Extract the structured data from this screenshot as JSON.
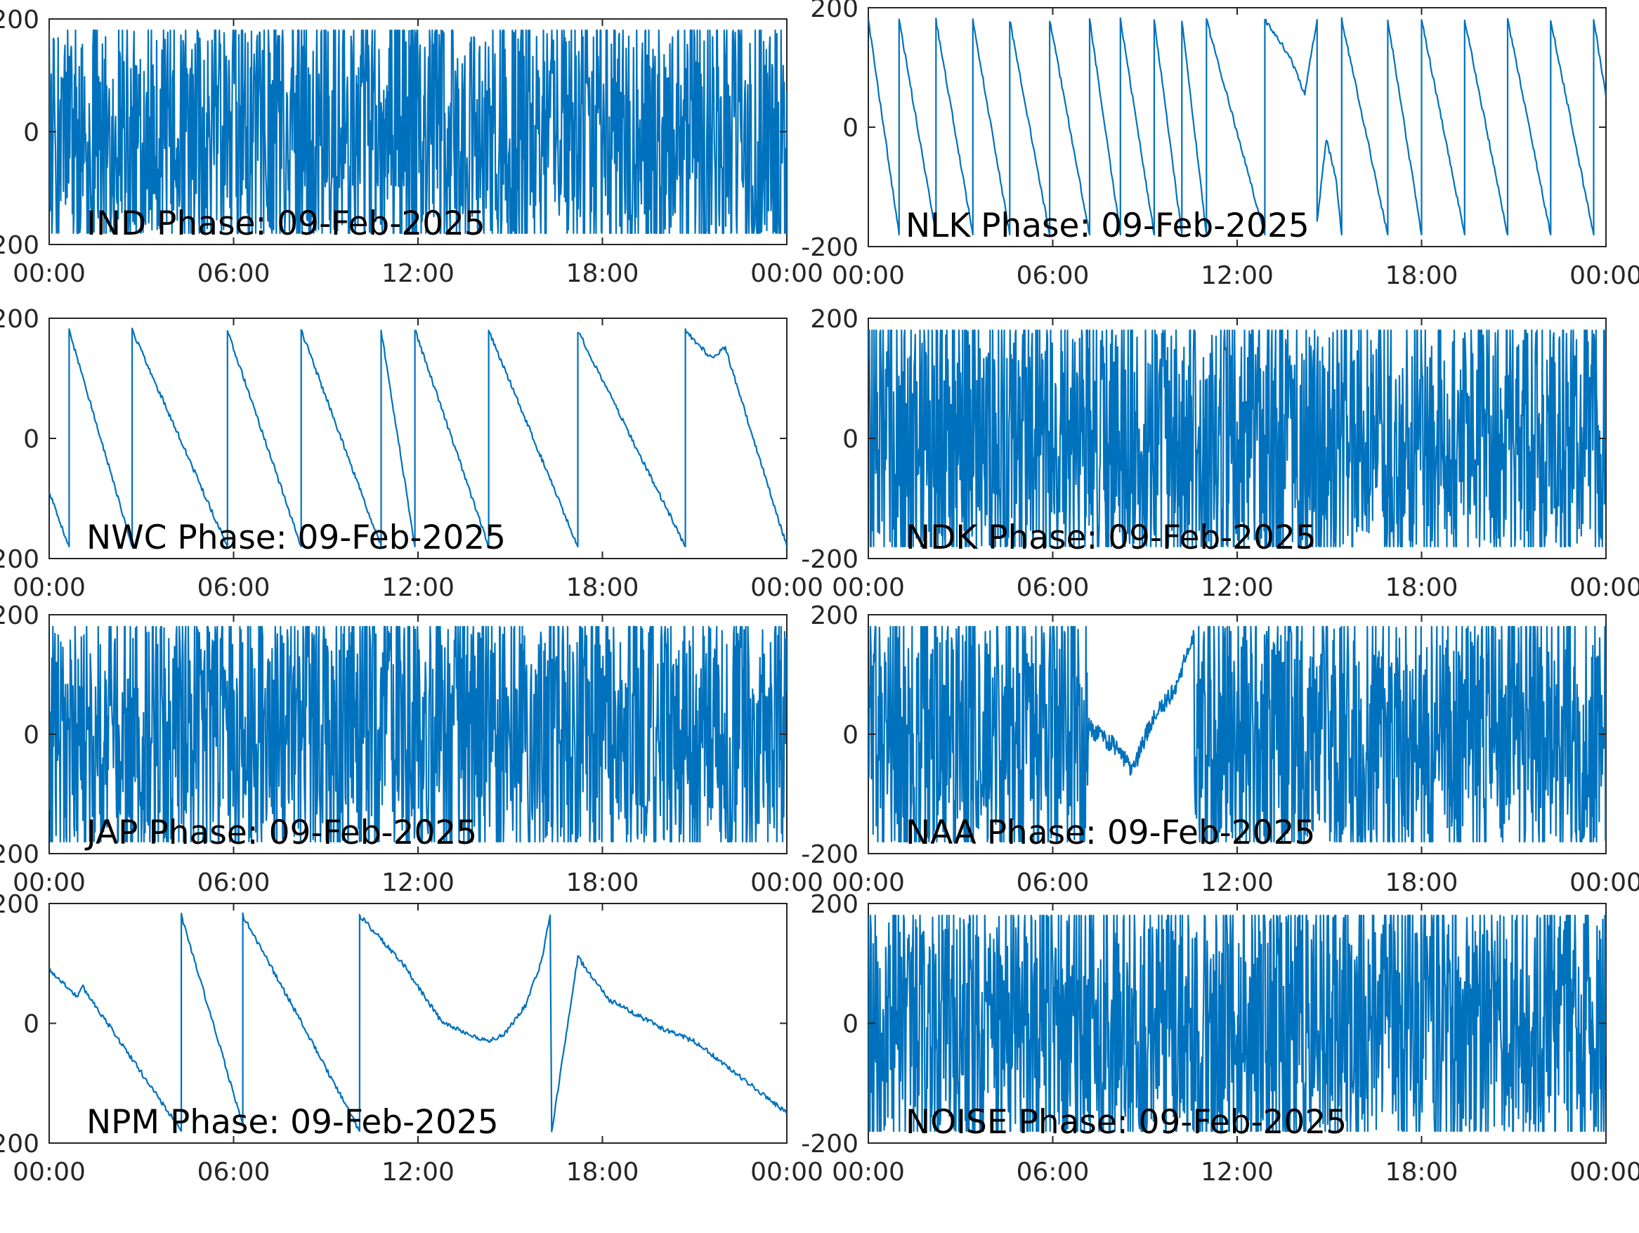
{
  "chart_data": [
    {
      "type": "line",
      "title": "IND Phase: 09-Feb-2025",
      "x_ticks": [
        "00:00",
        "06:00",
        "12:00",
        "18:00",
        "00:00"
      ],
      "y_ticks": [
        "-200",
        "0",
        "200"
      ],
      "xlim": [
        0,
        24
      ],
      "ylim": [
        -200,
        200
      ],
      "pattern": "noise",
      "series": [
        {
          "values": [
            {
              "x": 0,
              "y": 0
            }
          ]
        }
      ]
    },
    {
      "type": "line",
      "title": "NLK Phase: 09-Feb-2025",
      "x_ticks": [
        "00:00",
        "06:00",
        "12:00",
        "18:00",
        "00:00"
      ],
      "y_ticks": [
        "-200",
        "0",
        "200"
      ],
      "xlim": [
        0,
        24
      ],
      "ylim": [
        -200,
        200
      ],
      "pattern": "sawtooth",
      "series": [
        {
          "values": [
            {
              "x": 0.0,
              "y": 180
            },
            {
              "x": 1.0,
              "y": -180
            },
            {
              "x": 1.0,
              "y": 180
            },
            {
              "x": 2.2,
              "y": -180
            },
            {
              "x": 2.2,
              "y": 180
            },
            {
              "x": 3.4,
              "y": -180
            },
            {
              "x": 3.4,
              "y": 180
            },
            {
              "x": 4.6,
              "y": -180
            },
            {
              "x": 4.6,
              "y": 180
            },
            {
              "x": 5.9,
              "y": -180
            },
            {
              "x": 5.9,
              "y": 180
            },
            {
              "x": 7.2,
              "y": -180
            },
            {
              "x": 7.2,
              "y": 180
            },
            {
              "x": 8.2,
              "y": -180
            },
            {
              "x": 8.2,
              "y": 180
            },
            {
              "x": 9.3,
              "y": -180
            },
            {
              "x": 9.3,
              "y": 180
            },
            {
              "x": 10.2,
              "y": -180
            },
            {
              "x": 10.2,
              "y": 180
            },
            {
              "x": 11.0,
              "y": -180
            },
            {
              "x": 11.0,
              "y": 180
            },
            {
              "x": 12.9,
              "y": -180
            },
            {
              "x": 12.9,
              "y": 180
            },
            {
              "x": 13.7,
              "y": 120
            },
            {
              "x": 14.2,
              "y": 55
            },
            {
              "x": 14.6,
              "y": 180
            },
            {
              "x": 14.6,
              "y": -160
            },
            {
              "x": 14.9,
              "y": -20
            },
            {
              "x": 15.2,
              "y": -80
            },
            {
              "x": 15.4,
              "y": -180
            },
            {
              "x": 15.4,
              "y": 180
            },
            {
              "x": 16.9,
              "y": -180
            },
            {
              "x": 16.9,
              "y": 180
            },
            {
              "x": 18.0,
              "y": -180
            },
            {
              "x": 18.0,
              "y": 180
            },
            {
              "x": 19.4,
              "y": -180
            },
            {
              "x": 19.4,
              "y": 180
            },
            {
              "x": 20.8,
              "y": -180
            },
            {
              "x": 20.8,
              "y": 180
            },
            {
              "x": 22.2,
              "y": -180
            },
            {
              "x": 22.2,
              "y": 180
            },
            {
              "x": 23.6,
              "y": -180
            },
            {
              "x": 23.6,
              "y": 180
            },
            {
              "x": 24.0,
              "y": 50
            }
          ]
        }
      ]
    },
    {
      "type": "line",
      "title": "NWC Phase: 09-Feb-2025",
      "x_ticks": [
        "00:00",
        "06:00",
        "12:00",
        "18:00",
        "00:00"
      ],
      "y_ticks": [
        "-200",
        "0",
        "200"
      ],
      "xlim": [
        0,
        24
      ],
      "ylim": [
        -200,
        200
      ],
      "pattern": "sawtooth",
      "series": [
        {
          "values": [
            {
              "x": 0.0,
              "y": -90
            },
            {
              "x": 0.65,
              "y": -180
            },
            {
              "x": 0.65,
              "y": 180
            },
            {
              "x": 2.7,
              "y": -180
            },
            {
              "x": 2.7,
              "y": 180
            },
            {
              "x": 5.8,
              "y": -180
            },
            {
              "x": 5.8,
              "y": 180
            },
            {
              "x": 8.2,
              "y": -180
            },
            {
              "x": 8.2,
              "y": 180
            },
            {
              "x": 10.8,
              "y": -180
            },
            {
              "x": 10.8,
              "y": 180
            },
            {
              "x": 11.9,
              "y": -180
            },
            {
              "x": 11.9,
              "y": 180
            },
            {
              "x": 14.3,
              "y": -180
            },
            {
              "x": 14.3,
              "y": 180
            },
            {
              "x": 17.2,
              "y": -180
            },
            {
              "x": 17.2,
              "y": 180
            },
            {
              "x": 20.7,
              "y": -180
            },
            {
              "x": 20.7,
              "y": 180
            },
            {
              "x": 21.5,
              "y": 135
            },
            {
              "x": 22.0,
              "y": 150
            },
            {
              "x": 24.0,
              "y": -180
            }
          ]
        }
      ]
    },
    {
      "type": "line",
      "title": "NDK Phase: 09-Feb-2025",
      "x_ticks": [
        "00:00",
        "06:00",
        "12:00",
        "18:00",
        "00:00"
      ],
      "y_ticks": [
        "-200",
        "0",
        "200"
      ],
      "xlim": [
        0,
        24
      ],
      "ylim": [
        -200,
        200
      ],
      "pattern": "noise",
      "series": [
        {
          "values": [
            {
              "x": 0,
              "y": 0
            }
          ]
        }
      ]
    },
    {
      "type": "line",
      "title": "JAP Phase: 09-Feb-2025",
      "x_ticks": [
        "00:00",
        "06:00",
        "12:00",
        "18:00",
        "00:00"
      ],
      "y_ticks": [
        "-200",
        "0",
        "200"
      ],
      "xlim": [
        0,
        24
      ],
      "ylim": [
        -200,
        200
      ],
      "pattern": "noise",
      "series": [
        {
          "values": [
            {
              "x": 0,
              "y": 0
            }
          ]
        }
      ]
    },
    {
      "type": "line",
      "title": "NAA Phase: 09-Feb-2025",
      "x_ticks": [
        "00:00",
        "06:00",
        "12:00",
        "18:00",
        "00:00"
      ],
      "y_ticks": [
        "-200",
        "0",
        "200"
      ],
      "xlim": [
        0,
        24
      ],
      "ylim": [
        -200,
        200
      ],
      "pattern": "noise",
      "series": [
        {
          "values": [
            {
              "x": 7.2,
              "y": 10
            },
            {
              "x": 8.0,
              "y": -20
            },
            {
              "x": 8.6,
              "y": -60
            },
            {
              "x": 9.2,
              "y": 20
            },
            {
              "x": 10.0,
              "y": 80
            },
            {
              "x": 10.6,
              "y": 170
            }
          ]
        }
      ]
    },
    {
      "type": "line",
      "title": "NPM Phase: 09-Feb-2025",
      "x_ticks": [
        "00:00",
        "06:00",
        "12:00",
        "18:00",
        "00:00"
      ],
      "y_ticks": [
        "-200",
        "0",
        "200"
      ],
      "xlim": [
        0,
        24
      ],
      "ylim": [
        -200,
        200
      ],
      "pattern": "smooth",
      "series": [
        {
          "values": [
            {
              "x": 0.0,
              "y": 90
            },
            {
              "x": 0.9,
              "y": 45
            },
            {
              "x": 1.1,
              "y": 60
            },
            {
              "x": 2.7,
              "y": -60
            },
            {
              "x": 4.3,
              "y": -180
            },
            {
              "x": 4.3,
              "y": 180
            },
            {
              "x": 6.3,
              "y": -170
            },
            {
              "x": 6.3,
              "y": 180
            },
            {
              "x": 7.8,
              "y": 40
            },
            {
              "x": 10.1,
              "y": -180
            },
            {
              "x": 10.1,
              "y": 180
            },
            {
              "x": 11.5,
              "y": 100
            },
            {
              "x": 12.8,
              "y": 0
            },
            {
              "x": 14.2,
              "y": -30
            },
            {
              "x": 14.8,
              "y": -20
            },
            {
              "x": 15.5,
              "y": 30
            },
            {
              "x": 16.0,
              "y": 100
            },
            {
              "x": 16.3,
              "y": 180
            },
            {
              "x": 16.35,
              "y": -180
            },
            {
              "x": 17.2,
              "y": 110
            },
            {
              "x": 18.2,
              "y": 40
            },
            {
              "x": 20.0,
              "y": -10
            },
            {
              "x": 21.0,
              "y": -30
            },
            {
              "x": 22.5,
              "y": -90
            },
            {
              "x": 24.0,
              "y": -150
            }
          ]
        }
      ]
    },
    {
      "type": "line",
      "title": "NOISE Phase: 09-Feb-2025",
      "x_ticks": [
        "00:00",
        "06:00",
        "12:00",
        "18:00",
        "00:00"
      ],
      "y_ticks": [
        "-200",
        "0",
        "200"
      ],
      "xlim": [
        0,
        24
      ],
      "ylim": [
        -200,
        200
      ],
      "pattern": "noise",
      "series": [
        {
          "values": [
            {
              "x": 0,
              "y": 0
            }
          ]
        }
      ]
    }
  ],
  "line_color": "#0072BD"
}
